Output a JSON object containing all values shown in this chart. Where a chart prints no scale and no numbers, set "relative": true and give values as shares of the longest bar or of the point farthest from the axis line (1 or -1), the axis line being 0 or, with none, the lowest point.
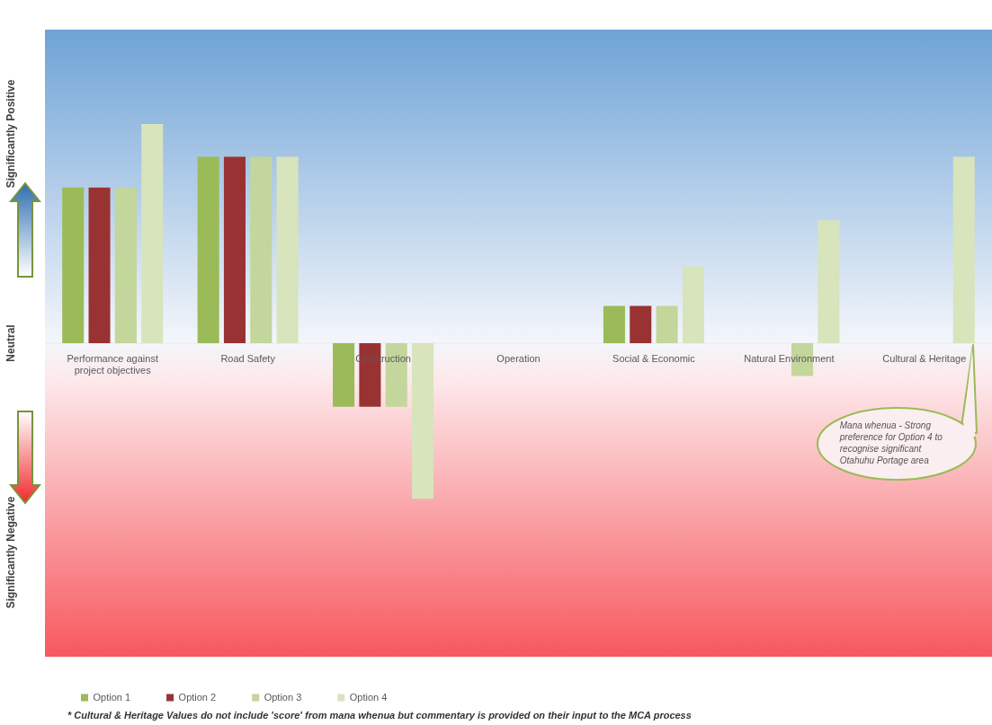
{
  "chart_data": {
    "type": "bar",
    "relative": true,
    "categories": [
      "Performance against project objectives",
      "Road Safety",
      "Construction",
      "Operation",
      "Social & Economic",
      "Natural Environment",
      "Cultural & Heritage"
    ],
    "series": [
      {
        "name": "Option 1",
        "color": "#9bbb59",
        "values": [
          0.71,
          0.85,
          -0.29,
          0,
          0.17,
          0,
          0
        ]
      },
      {
        "name": "Option 2",
        "color": "#993333",
        "values": [
          0.71,
          0.85,
          -0.29,
          0,
          0.17,
          0,
          0
        ]
      },
      {
        "name": "Option 3",
        "color": "#c3d69b",
        "values": [
          0.71,
          0.85,
          -0.29,
          0,
          0.17,
          -0.15,
          0
        ]
      },
      {
        "name": "Option 4",
        "color": "#d7e4bc",
        "values": [
          1,
          0.85,
          -0.71,
          0,
          0.35,
          0.56,
          0.85
        ]
      }
    ],
    "annotations": [
      "Significantly Positive",
      "Neutral",
      "Significantly Negative",
      "Mana whenua - Strong preference for Option 4 to recognise significant Otahuhu Portage area",
      "* Cultural & Heritage Values do not include 'score' from mana whenua but commentary is provided on their input to the MCA process"
    ],
    "legend": "bottom left",
    "grid": false
  }
}
